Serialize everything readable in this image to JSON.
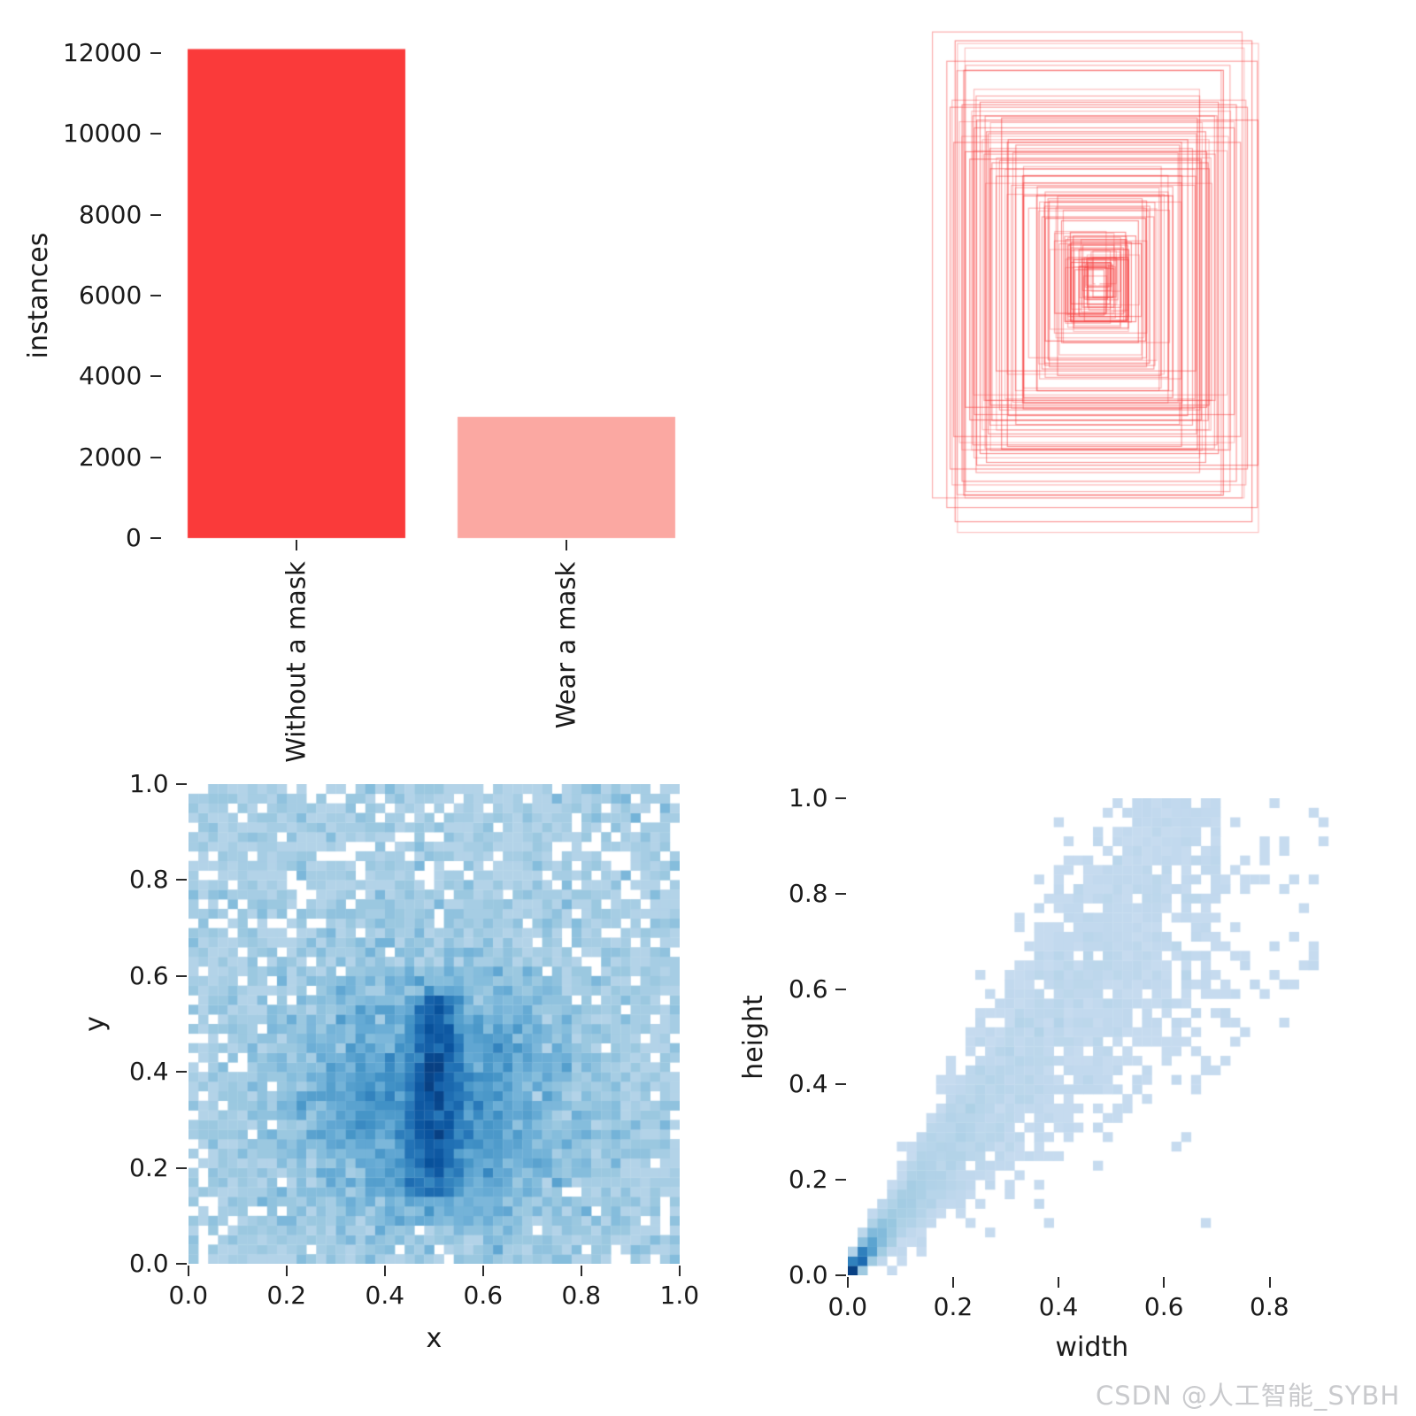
{
  "watermark": {
    "text": "CSDN @人工智能_SYBH",
    "color": "#c9cacd"
  },
  "colors": {
    "background": "#ffffff",
    "heat_colormap": "Blues",
    "box_stroke": "#f64646"
  },
  "chart_data": [
    {
      "id": "instances",
      "type": "bar",
      "title": "",
      "ylabel": "instances",
      "categories": [
        "Without a mask",
        "Wear a mask"
      ],
      "values": [
        12100,
        3000
      ],
      "bar_colors": [
        "#fa3a3a",
        "#fba8a2"
      ],
      "yticks": [
        0,
        2000,
        4000,
        6000,
        8000,
        10000,
        12000
      ],
      "ylim": [
        0,
        12400
      ],
      "grid": false,
      "legend": "none"
    },
    {
      "id": "bboxes",
      "type": "box-overlay",
      "description": "all dataset bounding boxes overlaid at a common center, red outlines, white dot at center",
      "stroke_color": "#f64646",
      "box_count": 115,
      "center": [
        0.5,
        0.5
      ],
      "seed": 7
    },
    {
      "id": "xy",
      "type": "heatmap",
      "xlabel": "x",
      "ylabel": "y",
      "bins": 50,
      "xlim": [
        0,
        1
      ],
      "ylim": [
        0,
        1
      ],
      "xticks": [
        "0.0",
        "0.2",
        "0.4",
        "0.6",
        "0.8",
        "1.0"
      ],
      "yticks": [
        "0.0",
        "0.2",
        "0.4",
        "0.6",
        "0.8",
        "1.0"
      ],
      "colormap": "Blues",
      "color_gamma": 0.55,
      "peak": {
        "x": 0.5,
        "y": 0.34
      },
      "distribution": {
        "background_points": 4200,
        "gauss": {
          "cx": 0.5,
          "cy": 0.34,
          "sx": 0.16,
          "sy": 0.15,
          "points": 6200
        },
        "band": {
          "cx": 0.5,
          "sx": 0.028,
          "y0": 0.14,
          "y1": 0.56,
          "points": 1700
        }
      },
      "seed": 11
    },
    {
      "id": "wh",
      "type": "heatmap",
      "xlabel": "width",
      "ylabel": "height",
      "bins": 50,
      "xlim": [
        0,
        0.93
      ],
      "ylim": [
        0,
        1
      ],
      "xticks": [
        "0.0",
        "0.2",
        "0.4",
        "0.6",
        "0.8"
      ],
      "yticks": [
        "0.0",
        "0.2",
        "0.4",
        "0.6",
        "0.8",
        "1.0"
      ],
      "colormap": "Blues",
      "color_gamma": 0.45,
      "peak": {
        "x": 0.02,
        "y": 0.03
      },
      "distribution": {
        "core": {
          "points": 2800,
          "scale": 0.028
        },
        "fan": {
          "points": 3300,
          "skew": 2.0,
          "max": 0.7,
          "ratio": 1.35,
          "spread": 0.33
        },
        "outliers": {
          "points": 380
        }
      },
      "seed": 23
    }
  ]
}
